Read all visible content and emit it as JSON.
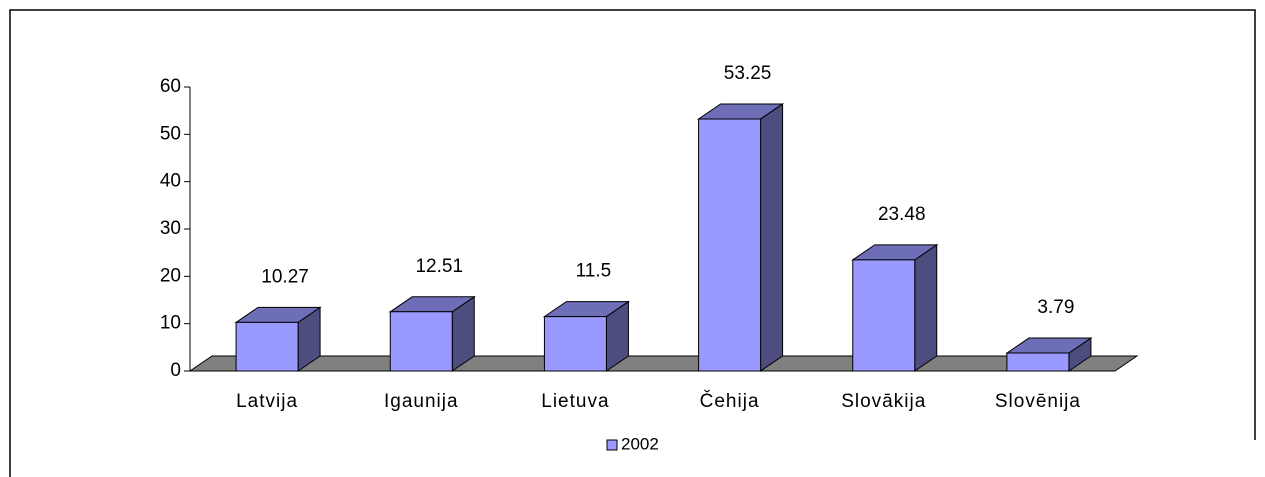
{
  "chart_data": {
    "type": "bar3d",
    "categories": [
      "Latvija",
      "Igaunija",
      "Lietuva",
      "Čehija",
      "Slovākija",
      "Slovēnija"
    ],
    "series": [
      {
        "name": "2002",
        "color": "#9999ff",
        "values": [
          10.27,
          12.51,
          11.5,
          53.25,
          23.48,
          3.79
        ]
      }
    ],
    "ylim": [
      0,
      60
    ],
    "yticks": [
      0,
      10,
      20,
      30,
      40,
      50,
      60
    ],
    "legend": "bottom"
  }
}
